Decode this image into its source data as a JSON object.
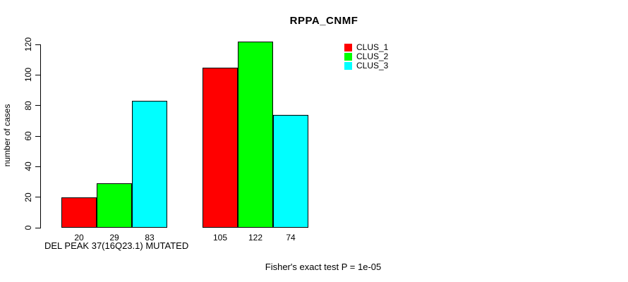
{
  "chart_data": {
    "type": "bar",
    "title": "RPPA_CNMF",
    "ylabel": "number of cases",
    "xlabel": "DEL PEAK 37(16Q23.1) MUTATED",
    "footnote": "Fisher's exact test P = 1e-05",
    "ylim": [
      0,
      120
    ],
    "yticks": [
      0,
      20,
      40,
      60,
      80,
      100,
      120
    ],
    "grid": false,
    "legend_position": "top-right",
    "series": [
      {
        "name": "CLUS_1",
        "color": "#ff0000",
        "values": [
          20,
          105
        ]
      },
      {
        "name": "CLUS_2",
        "color": "#00ff00",
        "values": [
          29,
          122
        ]
      },
      {
        "name": "CLUS_3",
        "color": "#00ffff",
        "values": [
          83,
          74
        ]
      }
    ],
    "groups": [
      {
        "bar_labels": [
          "20",
          "29",
          "83"
        ]
      },
      {
        "bar_labels": [
          "105",
          "122",
          "74"
        ]
      }
    ]
  }
}
